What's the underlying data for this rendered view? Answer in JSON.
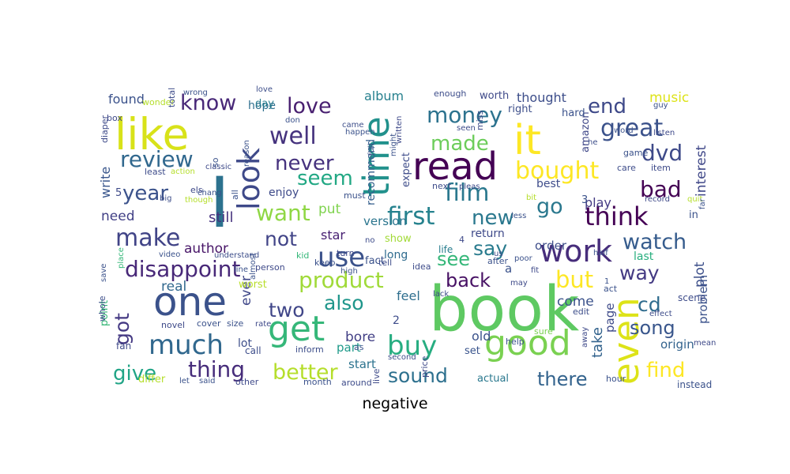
{
  "caption": "negative",
  "palette": {
    "background": "#ffffff",
    "colormap": "viridis",
    "caption": "#000000"
  },
  "words": [
    {
      "text": "book",
      "color": "#5ec962"
    },
    {
      "text": "I",
      "color": "#2c728e"
    },
    {
      "text": "one",
      "color": "#3b528b"
    },
    {
      "text": "like",
      "color": "#d8e219"
    },
    {
      "text": "read",
      "color": "#440154"
    },
    {
      "text": "it",
      "color": "#fde725"
    },
    {
      "text": "time",
      "color": "#21918c"
    },
    {
      "text": "look",
      "color": "#3e4989"
    },
    {
      "text": "get",
      "color": "#35b779"
    },
    {
      "text": "good",
      "color": "#7ad151"
    },
    {
      "text": "even",
      "color": "#dde318"
    },
    {
      "text": "work",
      "color": "#472d7b"
    },
    {
      "text": "much",
      "color": "#31688e"
    },
    {
      "text": "buy",
      "color": "#27ad81"
    },
    {
      "text": "use",
      "color": "#3b528b"
    },
    {
      "text": "think",
      "color": "#440154"
    },
    {
      "text": "make",
      "color": "#414487"
    },
    {
      "text": "disappoint",
      "color": "#482878"
    },
    {
      "text": "product",
      "color": "#a0da39"
    },
    {
      "text": "film",
      "color": "#2a788e"
    },
    {
      "text": "bought",
      "color": "#fde725"
    },
    {
      "text": "great",
      "color": "#3b528b"
    },
    {
      "text": "review",
      "color": "#31688e"
    },
    {
      "text": "first",
      "color": "#26828e"
    },
    {
      "text": "well",
      "color": "#46337e"
    },
    {
      "text": "want",
      "color": "#8fd744"
    },
    {
      "text": "better",
      "color": "#b5de2b"
    },
    {
      "text": "thing",
      "color": "#472d7b"
    },
    {
      "text": "give",
      "color": "#20a486"
    },
    {
      "text": "love",
      "color": "#481f70"
    },
    {
      "text": "know",
      "color": "#482878"
    },
    {
      "text": "money",
      "color": "#2c728e"
    },
    {
      "text": "made",
      "color": "#6ccd5a"
    },
    {
      "text": "never",
      "color": "#46327e"
    },
    {
      "text": "seem",
      "color": "#22a884"
    },
    {
      "text": "dvd",
      "color": "#3e4a89"
    },
    {
      "text": "watch",
      "color": "#365c8d"
    },
    {
      "text": "but",
      "color": "#fde725"
    },
    {
      "text": "sound",
      "color": "#2d708e"
    },
    {
      "text": "there",
      "color": "#33638d"
    },
    {
      "text": "find",
      "color": "#fde725"
    },
    {
      "text": "end",
      "color": "#3e4989"
    },
    {
      "text": "year",
      "color": "#3b528b"
    },
    {
      "text": "bad",
      "color": "#440154"
    },
    {
      "text": "two",
      "color": "#404688"
    },
    {
      "text": "also",
      "color": "#1f968b"
    },
    {
      "text": "go",
      "color": "#2a788e"
    },
    {
      "text": "new",
      "color": "#2a788e"
    },
    {
      "text": "back",
      "color": "#471164"
    },
    {
      "text": "way",
      "color": "#443a83"
    },
    {
      "text": "see",
      "color": "#35b779"
    },
    {
      "text": "say",
      "color": "#297b8e"
    },
    {
      "text": "cd",
      "color": "#2f6c8e"
    },
    {
      "text": "song",
      "color": "#39568c"
    },
    {
      "text": "not",
      "color": "#414487"
    },
    {
      "text": "got",
      "color": "#443983"
    },
    {
      "text": "still",
      "color": "#46327e"
    },
    {
      "text": "author",
      "color": "#481668"
    },
    {
      "text": "thought",
      "color": "#3d4e8a"
    },
    {
      "text": "music",
      "color": "#dde318"
    },
    {
      "text": "interest",
      "color": "#3f4788"
    },
    {
      "text": "play",
      "color": "#443b84"
    },
    {
      "text": "need",
      "color": "#424086"
    },
    {
      "text": "found",
      "color": "#3b528b"
    },
    {
      "text": "album",
      "color": "#27808e"
    },
    {
      "text": "enjoy",
      "color": "#3e4a89"
    },
    {
      "text": "put",
      "color": "#7fd34e"
    },
    {
      "text": "write",
      "color": "#39568c"
    },
    {
      "text": "recommend",
      "color": "#355f8d"
    },
    {
      "text": "version",
      "color": "#2b758e"
    },
    {
      "text": "star",
      "color": "#482173"
    },
    {
      "text": "come",
      "color": "#3b528b"
    },
    {
      "text": "take",
      "color": "#33638d"
    },
    {
      "text": "old",
      "color": "#3b528b"
    },
    {
      "text": "bore",
      "color": "#423f85"
    },
    {
      "text": "start",
      "color": "#2c738e"
    },
    {
      "text": "ever",
      "color": "#3f4788"
    },
    {
      "text": "page",
      "color": "#3e4a89"
    },
    {
      "text": "feel",
      "color": "#2e6e8e"
    },
    {
      "text": "plot",
      "color": "#3c4f8a"
    },
    {
      "text": "problem",
      "color": "#3b528b"
    },
    {
      "text": "order",
      "color": "#3d4d8a"
    },
    {
      "text": "return",
      "color": "#3e4989"
    },
    {
      "text": "real",
      "color": "#31688e"
    },
    {
      "text": "part",
      "color": "#1f9a8a"
    },
    {
      "text": "hope",
      "color": "#2e6f8e"
    },
    {
      "text": "day",
      "color": "#287c8e"
    },
    {
      "text": "lot",
      "color": "#3d4e8a"
    },
    {
      "text": "best",
      "color": "#3e4c8a"
    },
    {
      "text": "origin",
      "color": "#33638d"
    },
    {
      "text": "long",
      "color": "#2f6b8e"
    },
    {
      "text": "last",
      "color": "#29af7f"
    },
    {
      "text": "show",
      "color": "#a2da37"
    },
    {
      "text": "life",
      "color": "#287d8e"
    },
    {
      "text": "worst",
      "color": "#b8de29"
    },
    {
      "text": "actual",
      "color": "#2a788e"
    },
    {
      "text": "set",
      "color": "#3a548c"
    },
    {
      "text": "amazon",
      "color": "#3f4788"
    },
    {
      "text": "worth",
      "color": "#3e4989"
    },
    {
      "text": "right",
      "color": "#3d4e8a"
    },
    {
      "text": "expect",
      "color": "#3e4c8a"
    },
    {
      "text": "fact",
      "color": "#3b528b"
    },
    {
      "text": "enough",
      "color": "#3d4d8a"
    },
    {
      "text": "hard",
      "color": "#3b528b"
    },
    {
      "text": "game",
      "color": "#3b528b"
    },
    {
      "text": "scene",
      "color": "#3e4c8a"
    },
    {
      "text": "call",
      "color": "#3d4d8a"
    },
    {
      "text": "inform",
      "color": "#3d4e8a"
    },
    {
      "text": "instead",
      "color": "#3b528b"
    },
    {
      "text": "fan",
      "color": "#3e4989"
    },
    {
      "text": "point",
      "color": "#37b878"
    },
    {
      "text": "size",
      "color": "#3b528b"
    },
    {
      "text": "cover",
      "color": "#3b528b"
    },
    {
      "text": "novel",
      "color": "#3e4a89"
    },
    {
      "text": "differ",
      "color": "#b5de2b"
    },
    {
      "text": "let",
      "color": "#3b528b"
    },
    {
      "text": "said",
      "color": "#3b528b"
    },
    {
      "text": "other",
      "color": "#3e4989"
    },
    {
      "text": "month",
      "color": "#3b528b"
    },
    {
      "text": "around",
      "color": "#3e4c8a"
    },
    {
      "text": "live",
      "color": "#3e4a89"
    },
    {
      "text": "price",
      "color": "#3e4989"
    },
    {
      "text": "second",
      "color": "#3d4e8a"
    },
    {
      "text": "hour",
      "color": "#3b528b"
    },
    {
      "text": "effect",
      "color": "#3e4c8a"
    },
    {
      "text": "mean",
      "color": "#3e4a89"
    },
    {
      "text": "rate",
      "color": "#3e4989"
    },
    {
      "text": "help",
      "color": "#3b528b"
    },
    {
      "text": "sure",
      "color": "#7ad151"
    },
    {
      "text": "edit",
      "color": "#3d4e8a"
    },
    {
      "text": "idea",
      "color": "#3e4c8a"
    },
    {
      "text": "after",
      "color": "#3b528b"
    },
    {
      "text": "may",
      "color": "#3e4a89"
    },
    {
      "text": "act",
      "color": "#3b528b"
    },
    {
      "text": "poor",
      "color": "#3b528b"
    },
    {
      "text": "fit",
      "color": "#3e4989"
    },
    {
      "text": "video",
      "color": "#3b528b"
    },
    {
      "text": "understand",
      "color": "#3d4e8a"
    },
    {
      "text": "kid",
      "color": "#35b779"
    },
    {
      "text": "turn",
      "color": "#3e4989"
    },
    {
      "text": "keep",
      "color": "#3b528b"
    },
    {
      "text": "tell",
      "color": "#3e4c8a"
    },
    {
      "text": "high",
      "color": "#3b528b"
    },
    {
      "text": "lack",
      "color": "#3e4a89"
    },
    {
      "text": "line",
      "color": "#3b528b"
    },
    {
      "text": "person",
      "color": "#3e4989"
    },
    {
      "text": "save",
      "color": "#3b528b"
    },
    {
      "text": "place",
      "color": "#35b779"
    },
    {
      "text": "whole",
      "color": "#3d4e8a"
    },
    {
      "text": "almost",
      "color": "#3b528b"
    },
    {
      "text": "least",
      "color": "#3e4c8a"
    },
    {
      "text": "action",
      "color": "#b5de2b"
    },
    {
      "text": "classic",
      "color": "#3e4a89"
    },
    {
      "text": "reason",
      "color": "#3b528b"
    },
    {
      "text": "els",
      "color": "#3e4989"
    },
    {
      "text": "chang",
      "color": "#3b528b"
    },
    {
      "text": "big",
      "color": "#3d4e8a"
    },
    {
      "text": "though",
      "color": "#b5de2b"
    },
    {
      "text": "must",
      "color": "#3b528b"
    },
    {
      "text": "next",
      "color": "#3e4c8a"
    },
    {
      "text": "pleas",
      "color": "#3e4a89"
    },
    {
      "text": "bit",
      "color": "#b5de2b"
    },
    {
      "text": "less",
      "color": "#3b528b"
    },
    {
      "text": "record",
      "color": "#3e4989"
    },
    {
      "text": "quit",
      "color": "#b5de2b"
    },
    {
      "text": "far",
      "color": "#3b528b"
    },
    {
      "text": "care",
      "color": "#3e4c8a"
    },
    {
      "text": "item",
      "color": "#3e4a89"
    },
    {
      "text": "half",
      "color": "#3b528b"
    },
    {
      "text": "he",
      "color": "#3d4e8a"
    },
    {
      "text": "word",
      "color": "#3b528b"
    },
    {
      "text": "listen",
      "color": "#3e4989"
    },
    {
      "text": "guy",
      "color": "#3b528b"
    },
    {
      "text": "wonder",
      "color": "#b5de2b"
    },
    {
      "text": "total",
      "color": "#3e4c8a"
    },
    {
      "text": "wrong",
      "color": "#3b528b"
    },
    {
      "text": "diaper",
      "color": "#3e4a89"
    },
    {
      "text": "so",
      "color": "#3b528b"
    },
    {
      "text": "box",
      "color": "#3e4989"
    },
    {
      "text": "don",
      "color": "#3b528b"
    },
    {
      "text": "came",
      "color": "#3d4e8a"
    },
    {
      "text": "happen",
      "color": "#3b528b"
    },
    {
      "text": "seen",
      "color": "#3e4c8a"
    },
    {
      "text": "miss",
      "color": "#3e4a89"
    },
    {
      "text": "might",
      "color": "#3b528b"
    },
    {
      "text": "written",
      "color": "#3e4989"
    },
    {
      "text": "full",
      "color": "#3b528b"
    },
    {
      "text": "love",
      "color": "#3d4e8a"
    },
    {
      "text": "all",
      "color": "#3b528b"
    },
    {
      "text": "no",
      "color": "#3e4c8a"
    },
    {
      "text": "us",
      "color": "#3e4a89"
    },
    {
      "text": "as",
      "color": "#3b528b"
    },
    {
      "text": "away",
      "color": "#3e4989"
    },
    {
      "text": "a",
      "color": "#3b528b"
    },
    {
      "text": "2",
      "color": "#3e4c8a"
    },
    {
      "text": "3",
      "color": "#3b528b"
    },
    {
      "text": "4",
      "color": "#3e4989"
    },
    {
      "text": "1",
      "color": "#3b528b"
    },
    {
      "text": "5",
      "color": "#3e4a89"
    },
    {
      "text": "in",
      "color": "#3b528b"
    }
  ]
}
